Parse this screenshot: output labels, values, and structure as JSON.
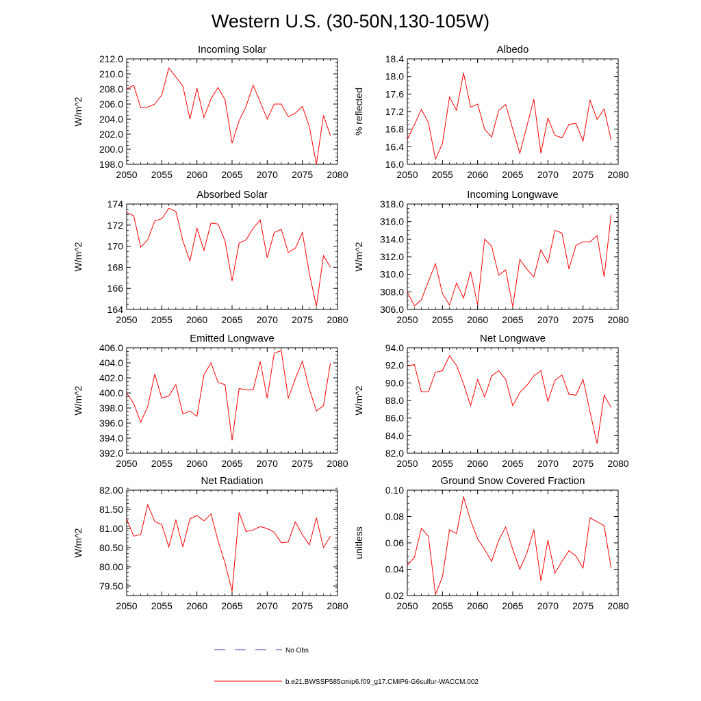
{
  "figure": {
    "title": "Western U.S. (30-50N,130-105W)"
  },
  "legend": {
    "obs_label": "No Obs",
    "model_label": "b.e21.BWSSP585cmip6.f09_g17.CMIP6-G6sulfur-WACCM.002",
    "obs_color": "#3b3bc8",
    "model_color": "#ff0000"
  },
  "chart_data": [
    {
      "type": "line",
      "title": "Incoming Solar",
      "xlabel": "",
      "ylabel": "W/m^2",
      "xlim": [
        2050,
        2080
      ],
      "ylim": [
        198.0,
        212.0
      ],
      "x_ticks": [
        2050,
        2055,
        2060,
        2065,
        2070,
        2075,
        2080
      ],
      "y_ticks": [
        198.0,
        200.0,
        202.0,
        204.0,
        206.0,
        208.0,
        210.0,
        212.0
      ],
      "y_tick_labels": [
        "198.0",
        "200.0",
        "202.0",
        "204.0",
        "206.0",
        "208.0",
        "210.0",
        "212.0"
      ],
      "y_minor_step": 0.5,
      "x": [
        2050,
        2051,
        2052,
        2053,
        2054,
        2055,
        2056,
        2057,
        2058,
        2059,
        2060,
        2061,
        2062,
        2063,
        2064,
        2065,
        2066,
        2067,
        2068,
        2069,
        2070,
        2071,
        2072,
        2073,
        2074,
        2075,
        2076,
        2077,
        2078,
        2079
      ],
      "series": [
        {
          "color": "#ff0000",
          "values": [
            208.0,
            208.5,
            205.5,
            205.6,
            206.0,
            207.2,
            210.8,
            209.6,
            208.4,
            204.0,
            208.1,
            204.2,
            206.7,
            208.2,
            206.6,
            200.8,
            203.8,
            205.7,
            208.5,
            206.3,
            204.0,
            206.0,
            206.0,
            204.3,
            204.8,
            205.7,
            203.0,
            198.0,
            204.5,
            201.8
          ]
        }
      ]
    },
    {
      "type": "line",
      "title": "Albedo",
      "xlabel": "",
      "ylabel": "% reflected",
      "xlim": [
        2050,
        2080
      ],
      "ylim": [
        16.0,
        18.4
      ],
      "x_ticks": [
        2050,
        2055,
        2060,
        2065,
        2070,
        2075,
        2080
      ],
      "y_ticks": [
        16.0,
        16.4,
        16.8,
        17.2,
        17.6,
        18.0,
        18.4
      ],
      "y_tick_labels": [
        "16.0",
        "16.4",
        "16.8",
        "17.2",
        "17.6",
        "18.0",
        "18.4"
      ],
      "y_minor_step": 0.1,
      "x": [
        2050,
        2051,
        2052,
        2053,
        2054,
        2055,
        2056,
        2057,
        2058,
        2059,
        2060,
        2061,
        2062,
        2063,
        2064,
        2065,
        2066,
        2067,
        2068,
        2069,
        2070,
        2071,
        2072,
        2073,
        2074,
        2075,
        2076,
        2077,
        2078,
        2079
      ],
      "series": [
        {
          "color": "#ff0000",
          "values": [
            16.57,
            16.9,
            17.25,
            16.95,
            16.12,
            16.47,
            17.53,
            17.23,
            18.08,
            17.3,
            17.37,
            16.8,
            16.62,
            17.23,
            17.36,
            16.8,
            16.25,
            16.86,
            17.48,
            16.25,
            17.05,
            16.66,
            16.6,
            16.91,
            16.93,
            16.53,
            17.46,
            17.02,
            17.26,
            16.55
          ]
        }
      ]
    },
    {
      "type": "line",
      "title": "Absorbed Solar",
      "xlabel": "",
      "ylabel": "W/m^2",
      "xlim": [
        2050,
        2080
      ],
      "ylim": [
        164,
        174
      ],
      "x_ticks": [
        2050,
        2055,
        2060,
        2065,
        2070,
        2075,
        2080
      ],
      "y_ticks": [
        164,
        166,
        168,
        170,
        172,
        174
      ],
      "y_tick_labels": [
        "164",
        "166",
        "168",
        "170",
        "172",
        "174"
      ],
      "y_minor_step": 0.5,
      "x": [
        2050,
        2051,
        2052,
        2053,
        2054,
        2055,
        2056,
        2057,
        2058,
        2059,
        2060,
        2061,
        2062,
        2063,
        2064,
        2065,
        2066,
        2067,
        2068,
        2069,
        2070,
        2071,
        2072,
        2073,
        2074,
        2075,
        2076,
        2077,
        2078,
        2079
      ],
      "series": [
        {
          "color": "#ff0000",
          "values": [
            173.2,
            172.9,
            169.9,
            170.6,
            172.4,
            172.6,
            173.6,
            173.3,
            170.5,
            168.6,
            171.7,
            169.6,
            172.2,
            172.1,
            170.5,
            166.7,
            170.3,
            170.6,
            171.7,
            172.5,
            168.9,
            171.3,
            171.6,
            169.4,
            169.8,
            171.3,
            167.4,
            164.3,
            169.1,
            168.0
          ]
        }
      ]
    },
    {
      "type": "line",
      "title": "Incoming Longwave",
      "xlabel": "",
      "ylabel": "W/m^2",
      "xlim": [
        2050,
        2080
      ],
      "ylim": [
        306.0,
        318.0
      ],
      "x_ticks": [
        2050,
        2055,
        2060,
        2065,
        2070,
        2075,
        2080
      ],
      "y_ticks": [
        306.0,
        308.0,
        310.0,
        312.0,
        314.0,
        316.0,
        318.0
      ],
      "y_tick_labels": [
        "306.0",
        "308.0",
        "310.0",
        "312.0",
        "314.0",
        "316.0",
        "318.0"
      ],
      "y_minor_step": 0.5,
      "x": [
        2050,
        2051,
        2052,
        2053,
        2054,
        2055,
        2056,
        2057,
        2058,
        2059,
        2060,
        2061,
        2062,
        2063,
        2064,
        2065,
        2066,
        2067,
        2068,
        2069,
        2070,
        2071,
        2072,
        2073,
        2074,
        2075,
        2076,
        2077,
        2078,
        2079
      ],
      "series": [
        {
          "color": "#ff0000",
          "values": [
            308.0,
            306.4,
            307.1,
            309.2,
            311.2,
            307.8,
            306.5,
            309.0,
            307.3,
            310.3,
            306.5,
            314.0,
            313.2,
            309.9,
            310.5,
            306.3,
            311.7,
            310.6,
            309.7,
            312.8,
            311.3,
            315.0,
            314.7,
            310.6,
            313.3,
            313.7,
            313.7,
            314.4,
            309.7,
            316.8
          ]
        }
      ]
    },
    {
      "type": "line",
      "title": "Emitted Longwave",
      "xlabel": "",
      "ylabel": "W/m^2",
      "xlim": [
        2050,
        2080
      ],
      "ylim": [
        392.0,
        406.0
      ],
      "x_ticks": [
        2050,
        2055,
        2060,
        2065,
        2070,
        2075,
        2080
      ],
      "y_ticks": [
        392.0,
        394.0,
        396.0,
        398.0,
        400.0,
        402.0,
        404.0,
        406.0
      ],
      "y_tick_labels": [
        "392.0",
        "394.0",
        "396.0",
        "398.0",
        "400.0",
        "402.0",
        "404.0",
        "406.0"
      ],
      "y_minor_step": 0.5,
      "x": [
        2050,
        2051,
        2052,
        2053,
        2054,
        2055,
        2056,
        2057,
        2058,
        2059,
        2060,
        2061,
        2062,
        2063,
        2064,
        2065,
        2066,
        2067,
        2068,
        2069,
        2070,
        2071,
        2072,
        2073,
        2074,
        2075,
        2076,
        2077,
        2078,
        2079
      ],
      "series": [
        {
          "color": "#ff0000",
          "values": [
            400.0,
            398.6,
            396.1,
            398.2,
            402.5,
            399.3,
            399.6,
            401.1,
            397.2,
            397.6,
            396.9,
            402.4,
            404.0,
            401.4,
            401.1,
            393.7,
            400.6,
            400.4,
            400.4,
            404.2,
            399.3,
            405.3,
            405.6,
            399.3,
            401.9,
            404.2,
            400.5,
            397.6,
            398.3,
            404.0
          ]
        }
      ]
    },
    {
      "type": "line",
      "title": "Net Longwave",
      "xlabel": "",
      "ylabel": "W/m^2",
      "xlim": [
        2050,
        2080
      ],
      "ylim": [
        82.0,
        94.0
      ],
      "x_ticks": [
        2050,
        2055,
        2060,
        2065,
        2070,
        2075,
        2080
      ],
      "y_ticks": [
        82.0,
        84.0,
        86.0,
        88.0,
        90.0,
        92.0,
        94.0
      ],
      "y_tick_labels": [
        "82.0",
        "84.0",
        "86.0",
        "88.0",
        "90.0",
        "92.0",
        "94.0"
      ],
      "y_minor_step": 0.5,
      "x": [
        2050,
        2051,
        2052,
        2053,
        2054,
        2055,
        2056,
        2057,
        2058,
        2059,
        2060,
        2061,
        2062,
        2063,
        2064,
        2065,
        2066,
        2067,
        2068,
        2069,
        2070,
        2071,
        2072,
        2073,
        2074,
        2075,
        2076,
        2077,
        2078,
        2079
      ],
      "series": [
        {
          "color": "#ff0000",
          "values": [
            91.9,
            92.1,
            89.0,
            89.0,
            91.2,
            91.4,
            93.1,
            92.0,
            89.9,
            87.4,
            90.4,
            88.4,
            90.8,
            91.4,
            90.4,
            87.4,
            88.9,
            89.7,
            90.8,
            91.4,
            87.9,
            90.3,
            90.9,
            88.7,
            88.6,
            90.4,
            86.7,
            83.1,
            88.6,
            87.2
          ]
        }
      ]
    },
    {
      "type": "line",
      "title": "Net Radiation",
      "xlabel": "",
      "ylabel": "W/m^2",
      "xlim": [
        2050,
        2080
      ],
      "ylim": [
        79.25,
        82.0
      ],
      "x_ticks": [
        2050,
        2055,
        2060,
        2065,
        2070,
        2075,
        2080
      ],
      "y_ticks": [
        79.5,
        80.0,
        80.5,
        81.0,
        81.5,
        82.0
      ],
      "y_tick_labels": [
        "79.50",
        "80.00",
        "80.50",
        "81.00",
        "81.50",
        "82.00"
      ],
      "y_minor_step": 0.1,
      "x": [
        2050,
        2051,
        2052,
        2053,
        2054,
        2055,
        2056,
        2057,
        2058,
        2059,
        2060,
        2061,
        2062,
        2063,
        2064,
        2065,
        2066,
        2067,
        2068,
        2069,
        2070,
        2071,
        2072,
        2073,
        2074,
        2075,
        2076,
        2077,
        2078,
        2079
      ],
      "series": [
        {
          "color": "#ff0000",
          "values": [
            81.25,
            80.8,
            80.84,
            81.62,
            81.18,
            81.1,
            80.52,
            81.22,
            80.52,
            81.25,
            81.34,
            81.2,
            81.38,
            80.68,
            80.1,
            79.36,
            81.42,
            80.92,
            80.96,
            81.05,
            81.0,
            80.9,
            80.63,
            80.65,
            81.17,
            80.84,
            80.57,
            81.28,
            80.5,
            80.8
          ]
        }
      ]
    },
    {
      "type": "line",
      "title": "Ground Snow Covered Fraction",
      "xlabel": "",
      "ylabel": "unitless",
      "xlim": [
        2050,
        2080
      ],
      "ylim": [
        0.02,
        0.1
      ],
      "x_ticks": [
        2050,
        2055,
        2060,
        2065,
        2070,
        2075,
        2080
      ],
      "y_ticks": [
        0.02,
        0.04,
        0.06,
        0.08,
        0.1
      ],
      "y_tick_labels": [
        "0.02",
        "0.04",
        "0.06",
        "0.08",
        "0.10"
      ],
      "y_minor_step": 0.005,
      "x": [
        2050,
        2051,
        2052,
        2053,
        2054,
        2055,
        2056,
        2057,
        2058,
        2059,
        2060,
        2061,
        2062,
        2063,
        2064,
        2065,
        2066,
        2067,
        2068,
        2069,
        2070,
        2071,
        2072,
        2073,
        2074,
        2075,
        2076,
        2077,
        2078,
        2079
      ],
      "series": [
        {
          "color": "#ff0000",
          "values": [
            0.043,
            0.049,
            0.071,
            0.065,
            0.021,
            0.034,
            0.07,
            0.067,
            0.095,
            0.077,
            0.063,
            0.055,
            0.046,
            0.062,
            0.072,
            0.055,
            0.04,
            0.052,
            0.07,
            0.031,
            0.062,
            0.037,
            0.046,
            0.054,
            0.05,
            0.041,
            0.079,
            0.076,
            0.073,
            0.041
          ]
        }
      ]
    }
  ]
}
